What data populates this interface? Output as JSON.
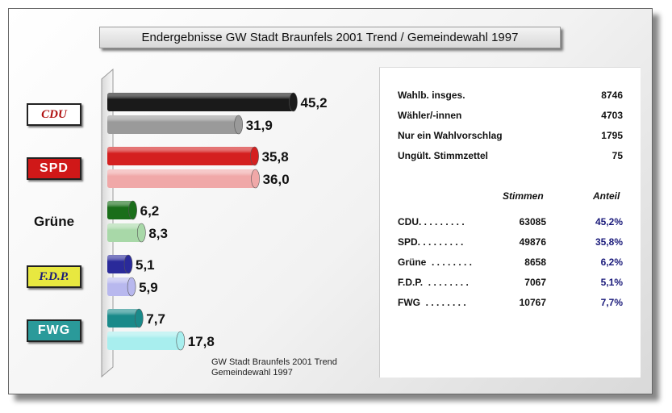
{
  "title": "Endergebnisse GW Stadt Braunfels 2001 Trend / Gemeindewahl 1997",
  "footnote": [
    "GW Stadt Braunfels 2001 Trend",
    "Gemeindewahl 1997"
  ],
  "stats": [
    {
      "label": "Wahlb. insges.",
      "value": "8746"
    },
    {
      "label": "Wähler/-innen",
      "value": "4703"
    },
    {
      "label": "Nur ein  Wahlvorschlag",
      "value": "1795"
    },
    {
      "label": "Ungült. Stimmzettel",
      "value": "75"
    }
  ],
  "table": {
    "headers": [
      "Stimmen",
      "Anteil"
    ],
    "rows": [
      {
        "party": "CDU. . . . . . . . .",
        "stimmen": "63085",
        "anteil": "45,2%"
      },
      {
        "party": "SPD. . . . . . . . .",
        "stimmen": "49876",
        "anteil": "35,8%"
      },
      {
        "party": "Grüne  . . . . . . . .",
        "stimmen": "8658",
        "anteil": "6,2%"
      },
      {
        "party": "F.D.P.  . . . . . . . .",
        "stimmen": "7067",
        "anteil": "5,1%"
      },
      {
        "party": "FWG  . . . . . . . .",
        "stimmen": "10767",
        "anteil": "7,7%"
      }
    ]
  },
  "chart_data": {
    "type": "bar",
    "orientation": "horizontal",
    "title": "Endergebnisse GW Stadt Braunfels 2001 Trend / Gemeindewahl 1997",
    "categories": [
      "CDU",
      "SPD",
      "Grüne",
      "F.D.P.",
      "FWG"
    ],
    "series": [
      {
        "name": "GW Stadt Braunfels 2001 Trend",
        "values": [
          45.2,
          35.8,
          6.2,
          5.1,
          7.7
        ],
        "labels": [
          "45,2",
          "35,8",
          "6,2",
          "5,1",
          "7,7"
        ]
      },
      {
        "name": "Gemeindewahl 1997",
        "values": [
          31.9,
          36.0,
          8.3,
          5.9,
          17.8
        ],
        "labels": [
          "31,9",
          "36,0",
          "8,3",
          "5,9",
          "17,8"
        ]
      }
    ],
    "xlim": [
      0,
      50
    ],
    "colors": {
      "CDU": [
        "#1a1a1a",
        "#9a9a9a"
      ],
      "SPD": [
        "#d42020",
        "#f0a8a8"
      ],
      "Grüne": [
        "#1a6e1a",
        "#a8d8a8"
      ],
      "F.D.P.": [
        "#2a2a9a",
        "#b8b8ee"
      ],
      "FWG": [
        "#1a8a8a",
        "#a8eeee"
      ]
    },
    "logos": [
      {
        "text": "CDU",
        "color": "#b01010",
        "bg": "#ffffff",
        "border": "#222"
      },
      {
        "text": "SPD",
        "color": "#ffffff",
        "bg": "#d01818",
        "border": "#222"
      },
      {
        "text": "Grüne",
        "color": "#111111",
        "bg": "transparent",
        "border": "transparent"
      },
      {
        "text": "F.D.P.",
        "color": "#1a1a7a",
        "bg": "#e8e840",
        "border": "#222"
      },
      {
        "text": "FWG",
        "color": "#ffffff",
        "bg": "#2a9a9a",
        "border": "#222"
      }
    ]
  }
}
